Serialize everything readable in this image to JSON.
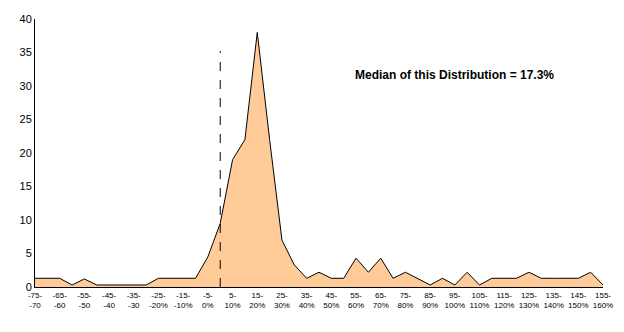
{
  "chart_data": {
    "type": "area",
    "annotations": [
      "Median of this Distribution = 17.3%"
    ],
    "categories": [
      "-75-\n-70",
      null,
      "-65-\n-60",
      null,
      "-55-\n-50",
      null,
      "-45-\n-40",
      null,
      "-35-\n-30",
      null,
      "-25-\n-20%",
      null,
      "-15-\n-10%",
      null,
      "-5-\n0%",
      null,
      "5-\n10%",
      null,
      "15-\n20%",
      null,
      "25-\n30%",
      null,
      "35-\n40%",
      null,
      "45-\n50%",
      null,
      "55-\n60%",
      null,
      "65-\n70%",
      null,
      "75-\n80%",
      null,
      "85-\n90%",
      null,
      "95-\n100%",
      null,
      "105-\n110%",
      null,
      "115-\n120%",
      null,
      "125-\n130%",
      null,
      "135-\n140%",
      null,
      "145-\n150%",
      null,
      "155-\n160%"
    ],
    "values": [
      1.3,
      1.3,
      1.3,
      0.3,
      1.2,
      0.3,
      0.3,
      0.3,
      0.3,
      0.3,
      1.3,
      1.3,
      1.3,
      1.3,
      4.5,
      9.5,
      19,
      22,
      38,
      22,
      7,
      3.3,
      1.3,
      2.2,
      1.3,
      1.3,
      4.3,
      2.2,
      4.3,
      1.3,
      2.2,
      1.3,
      0.3,
      1.3,
      0.3,
      2.2,
      0.3,
      1.3,
      1.3,
      1.3,
      2.2,
      1.3,
      1.3,
      1.3,
      1.3,
      2.2,
      0.3
    ],
    "color": "#ffcc99",
    "ylim": [
      0,
      40
    ],
    "yticks": [
      0,
      5,
      10,
      15,
      20,
      25,
      30,
      35,
      40
    ],
    "grid": false
  }
}
